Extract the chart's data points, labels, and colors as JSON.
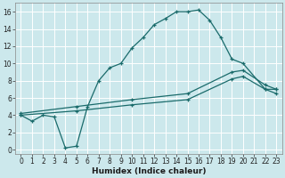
{
  "xlabel": "Humidex (Indice chaleur)",
  "bg_color": "#cce8ec",
  "grid_color": "#ffffff",
  "line_color": "#1a6b6b",
  "xlim": [
    -0.5,
    23.5
  ],
  "ylim": [
    -0.5,
    17
  ],
  "xticks": [
    0,
    1,
    2,
    3,
    4,
    5,
    6,
    7,
    8,
    9,
    10,
    11,
    12,
    13,
    14,
    15,
    16,
    17,
    18,
    19,
    20,
    21,
    22,
    23
  ],
  "yticks": [
    0,
    2,
    4,
    6,
    8,
    10,
    12,
    14,
    16
  ],
  "line1_x": [
    0,
    1,
    2,
    3,
    4,
    5,
    6,
    7,
    8,
    9,
    10,
    11,
    12,
    13,
    14,
    15,
    16,
    17,
    18,
    19,
    20,
    22,
    23
  ],
  "line1_y": [
    4.0,
    3.3,
    4.0,
    3.8,
    0.2,
    0.4,
    5.0,
    8.0,
    9.5,
    10.0,
    11.8,
    13.0,
    14.5,
    15.2,
    16.0,
    16.0,
    16.2,
    15.0,
    13.0,
    10.5,
    10.0,
    7.0,
    7.0
  ],
  "line2_x": [
    0,
    5,
    10,
    15,
    19,
    20,
    22,
    23
  ],
  "line2_y": [
    4.2,
    5.0,
    5.8,
    6.5,
    9.0,
    9.2,
    7.5,
    7.0
  ],
  "line3_x": [
    0,
    5,
    10,
    15,
    19,
    20,
    22,
    23
  ],
  "line3_y": [
    4.0,
    4.5,
    5.2,
    5.8,
    8.2,
    8.5,
    7.0,
    6.5
  ],
  "tick_fontsize": 5.5,
  "xlabel_fontsize": 6.5
}
